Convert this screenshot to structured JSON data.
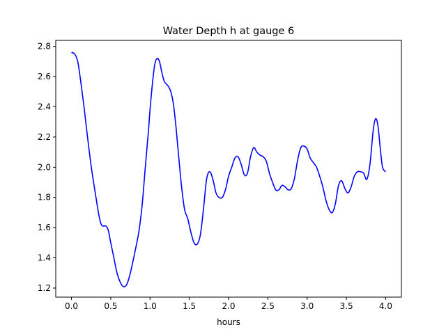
{
  "chart_data": {
    "type": "line",
    "title": "Water Depth h at gauge 6",
    "xlabel": "hours",
    "ylabel": "",
    "xlim": [
      -0.2,
      4.2
    ],
    "ylim": [
      1.14,
      2.84
    ],
    "xticks": [
      0.0,
      0.5,
      1.0,
      1.5,
      2.0,
      2.5,
      3.0,
      3.5,
      4.0
    ],
    "xtick_labels": [
      "0.0",
      "0.5",
      "1.0",
      "1.5",
      "2.0",
      "2.5",
      "3.0",
      "3.5",
      "4.0"
    ],
    "yticks": [
      1.2,
      1.4,
      1.6,
      1.8,
      2.0,
      2.2,
      2.4,
      2.6,
      2.8
    ],
    "ytick_labels": [
      "1.2",
      "1.4",
      "1.6",
      "1.8",
      "2.0",
      "2.2",
      "2.4",
      "2.6",
      "2.8"
    ],
    "grid": false,
    "legend": "none",
    "series": [
      {
        "color": "#0000ff",
        "x": [
          0.0,
          0.04,
          0.08,
          0.12,
          0.16,
          0.2,
          0.25,
          0.3,
          0.35,
          0.38,
          0.41,
          0.44,
          0.47,
          0.5,
          0.54,
          0.58,
          0.62,
          0.66,
          0.7,
          0.74,
          0.78,
          0.82,
          0.86,
          0.9,
          0.94,
          0.98,
          1.0,
          1.03,
          1.06,
          1.09,
          1.12,
          1.15,
          1.18,
          1.21,
          1.24,
          1.27,
          1.3,
          1.33,
          1.36,
          1.4,
          1.44,
          1.48,
          1.52,
          1.56,
          1.6,
          1.64,
          1.68,
          1.72,
          1.76,
          1.8,
          1.84,
          1.88,
          1.92,
          1.96,
          2.0,
          2.04,
          2.08,
          2.12,
          2.16,
          2.2,
          2.24,
          2.28,
          2.32,
          2.36,
          2.4,
          2.44,
          2.48,
          2.52,
          2.56,
          2.6,
          2.64,
          2.68,
          2.72,
          2.76,
          2.8,
          2.84,
          2.88,
          2.92,
          2.96,
          3.0,
          3.04,
          3.08,
          3.12,
          3.16,
          3.2,
          3.24,
          3.28,
          3.32,
          3.36,
          3.4,
          3.44,
          3.48,
          3.52,
          3.56,
          3.6,
          3.64,
          3.68,
          3.72,
          3.76,
          3.8,
          3.84,
          3.87,
          3.9,
          3.93,
          3.96,
          4.0
        ],
        "y": [
          2.76,
          2.75,
          2.7,
          2.56,
          2.4,
          2.22,
          2.01,
          1.84,
          1.68,
          1.62,
          1.61,
          1.61,
          1.58,
          1.5,
          1.4,
          1.3,
          1.24,
          1.21,
          1.22,
          1.28,
          1.37,
          1.47,
          1.58,
          1.75,
          2.0,
          2.24,
          2.38,
          2.55,
          2.68,
          2.72,
          2.7,
          2.63,
          2.57,
          2.55,
          2.53,
          2.49,
          2.41,
          2.27,
          2.1,
          1.88,
          1.72,
          1.66,
          1.57,
          1.5,
          1.49,
          1.55,
          1.72,
          1.92,
          1.97,
          1.92,
          1.83,
          1.8,
          1.8,
          1.85,
          1.94,
          2.0,
          2.06,
          2.07,
          2.02,
          1.95,
          1.96,
          2.07,
          2.13,
          2.1,
          2.08,
          2.07,
          2.04,
          1.96,
          1.9,
          1.85,
          1.85,
          1.88,
          1.87,
          1.85,
          1.86,
          1.93,
          2.05,
          2.13,
          2.14,
          2.12,
          2.06,
          2.03,
          2.0,
          1.94,
          1.87,
          1.78,
          1.72,
          1.7,
          1.76,
          1.88,
          1.91,
          1.86,
          1.83,
          1.87,
          1.94,
          1.97,
          1.97,
          1.96,
          1.92,
          2.02,
          2.24,
          2.32,
          2.28,
          2.13,
          2.0,
          1.97
        ]
      }
    ]
  }
}
